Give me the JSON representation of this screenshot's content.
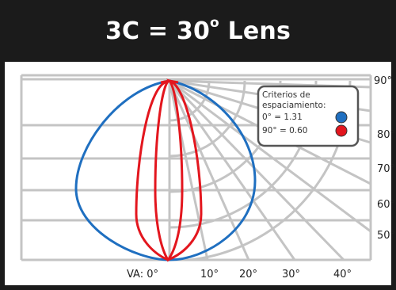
{
  "title": {
    "main": "3C = 30",
    "degree": "o",
    "suffix": " Lens"
  },
  "chart_data": {
    "type": "polar-candela",
    "title": "3C = 30° Lens",
    "vertical_angles": [
      "VA: 0°",
      "10°",
      "20°",
      "30°",
      "40°"
    ],
    "side_angles": [
      "50°",
      "60°",
      "70°",
      "80°",
      "90°"
    ],
    "legend": {
      "heading": "Criterios de espaciamiento:",
      "entries": [
        {
          "label": "0° = 1.31",
          "color": "#1f6fc0"
        },
        {
          "label": "90° = 0.60",
          "color": "#e3161e"
        }
      ]
    },
    "series": [
      {
        "name": "0°",
        "color": "#1f6fc0",
        "spacing_criteria": 1.31
      },
      {
        "name": "90°",
        "color": "#e3161e",
        "spacing_criteria": 0.6
      }
    ]
  },
  "colors": {
    "frame": "#1b1b1b",
    "grid": "#c4c4c4",
    "blue": "#1f6fc0",
    "red": "#e3161e"
  }
}
